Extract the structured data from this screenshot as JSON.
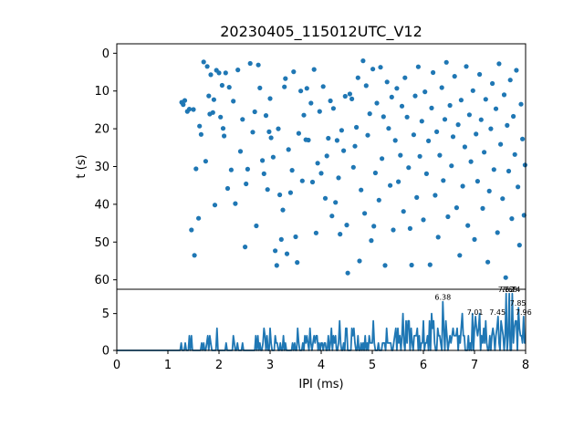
{
  "chart_data": [
    {
      "type": "scatter",
      "title": "20230405_115012UTC_V12",
      "xlabel": "",
      "ylabel": "t (s)",
      "xlim": [
        0,
        8
      ],
      "ylim": [
        62.5,
        -2.5
      ],
      "y_inverted": true,
      "color": "#1f77b4",
      "xticks": [],
      "yticks": [
        0,
        10,
        20,
        30,
        40,
        50,
        60
      ],
      "ytick_labels": [
        "0",
        "10",
        "20",
        "30",
        "40",
        "50",
        "60"
      ],
      "points": [
        [
          1.27,
          13.0
        ],
        [
          1.3,
          13.6
        ],
        [
          1.33,
          12.5
        ],
        [
          1.38,
          15.4
        ],
        [
          1.42,
          14.8
        ],
        [
          1.46,
          46.8
        ],
        [
          1.5,
          14.9
        ],
        [
          1.52,
          53.5
        ],
        [
          1.55,
          30.6
        ],
        [
          1.6,
          43.7
        ],
        [
          1.62,
          19.3
        ],
        [
          1.65,
          21.5
        ],
        [
          1.7,
          2.3
        ],
        [
          1.74,
          28.6
        ],
        [
          1.77,
          3.5
        ],
        [
          1.8,
          11.3
        ],
        [
          1.82,
          16.1
        ],
        [
          1.84,
          5.7
        ],
        [
          1.88,
          15.7
        ],
        [
          1.9,
          12.3
        ],
        [
          1.92,
          40.2
        ],
        [
          1.95,
          4.5
        ],
        [
          2.0,
          5.2
        ],
        [
          2.03,
          16.9
        ],
        [
          2.06,
          8.5
        ],
        [
          2.08,
          19.9
        ],
        [
          2.1,
          21.9
        ],
        [
          2.13,
          5.2
        ],
        [
          2.17,
          35.8
        ],
        [
          2.2,
          9.0
        ],
        [
          2.24,
          30.9
        ],
        [
          2.28,
          12.7
        ],
        [
          2.32,
          39.8
        ],
        [
          2.37,
          4.4
        ],
        [
          2.42,
          26.0
        ],
        [
          2.46,
          17.5
        ],
        [
          2.51,
          51.3
        ],
        [
          2.53,
          34.6
        ],
        [
          2.56,
          30.7
        ],
        [
          2.61,
          2.7
        ],
        [
          2.66,
          20.9
        ],
        [
          2.7,
          15.5
        ],
        [
          2.73,
          45.7
        ],
        [
          2.77,
          3.1
        ],
        [
          2.8,
          9.2
        ],
        [
          2.85,
          28.4
        ],
        [
          2.88,
          31.9
        ],
        [
          2.92,
          16.5
        ],
        [
          2.95,
          36.1
        ],
        [
          2.98,
          20.8
        ],
        [
          3.0,
          12.0
        ],
        [
          3.02,
          22.4
        ],
        [
          3.06,
          27.5
        ],
        [
          3.1,
          52.3
        ],
        [
          3.13,
          56.2
        ],
        [
          3.16,
          20.0
        ],
        [
          3.19,
          37.5
        ],
        [
          3.22,
          49.3
        ],
        [
          3.25,
          41.5
        ],
        [
          3.28,
          8.9
        ],
        [
          3.3,
          6.7
        ],
        [
          3.33,
          53.1
        ],
        [
          3.36,
          25.5
        ],
        [
          3.4,
          36.9
        ],
        [
          3.43,
          31.0
        ],
        [
          3.46,
          4.9
        ],
        [
          3.5,
          48.6
        ],
        [
          3.53,
          55.4
        ],
        [
          3.56,
          21.2
        ],
        [
          3.6,
          10.0
        ],
        [
          3.63,
          33.8
        ],
        [
          3.66,
          16.4
        ],
        [
          3.7,
          22.9
        ],
        [
          3.72,
          9.3
        ],
        [
          3.75,
          23.0
        ],
        [
          3.8,
          13.2
        ],
        [
          3.83,
          34.1
        ],
        [
          3.86,
          4.3
        ],
        [
          3.9,
          47.6
        ],
        [
          3.93,
          29.1
        ],
        [
          3.97,
          15.4
        ],
        [
          4.0,
          31.8
        ],
        [
          4.04,
          8.8
        ],
        [
          4.08,
          38.4
        ],
        [
          4.11,
          27.2
        ],
        [
          4.14,
          22.5
        ],
        [
          4.18,
          12.6
        ],
        [
          4.21,
          43.1
        ],
        [
          4.24,
          14.6
        ],
        [
          4.28,
          39.5
        ],
        [
          4.31,
          23.1
        ],
        [
          4.34,
          33.0
        ],
        [
          4.37,
          47.9
        ],
        [
          4.4,
          20.4
        ],
        [
          4.44,
          25.8
        ],
        [
          4.47,
          11.4
        ],
        [
          4.5,
          45.5
        ],
        [
          4.52,
          58.2
        ],
        [
          4.56,
          10.8
        ],
        [
          4.6,
          12.1
        ],
        [
          4.63,
          30.2
        ],
        [
          4.66,
          24.6
        ],
        [
          4.69,
          19.6
        ],
        [
          4.72,
          6.5
        ],
        [
          4.75,
          55.0
        ],
        [
          4.78,
          36.2
        ],
        [
          4.82,
          2.0
        ],
        [
          4.85,
          42.4
        ],
        [
          4.88,
          8.6
        ],
        [
          4.91,
          21.7
        ],
        [
          4.95,
          16.0
        ],
        [
          4.98,
          49.6
        ],
        [
          5.01,
          4.2
        ],
        [
          5.03,
          45.8
        ],
        [
          5.06,
          31.7
        ],
        [
          5.09,
          13.2
        ],
        [
          5.13,
          38.9
        ],
        [
          5.16,
          3.7
        ],
        [
          5.19,
          27.9
        ],
        [
          5.22,
          16.8
        ],
        [
          5.25,
          56.2
        ],
        [
          5.29,
          7.6
        ],
        [
          5.32,
          19.9
        ],
        [
          5.35,
          35.0
        ],
        [
          5.38,
          11.6
        ],
        [
          5.41,
          46.8
        ],
        [
          5.45,
          23.1
        ],
        [
          5.48,
          9.3
        ],
        [
          5.51,
          34.0
        ],
        [
          5.55,
          27.0
        ],
        [
          5.58,
          14.0
        ],
        [
          5.61,
          41.9
        ],
        [
          5.64,
          6.5
        ],
        [
          5.68,
          16.9
        ],
        [
          5.71,
          30.3
        ],
        [
          5.74,
          46.4
        ],
        [
          5.77,
          56.1
        ],
        [
          5.81,
          21.6
        ],
        [
          5.84,
          11.3
        ],
        [
          5.87,
          38.2
        ],
        [
          5.9,
          3.6
        ],
        [
          5.93,
          27.3
        ],
        [
          5.97,
          18.0
        ],
        [
          6.0,
          44.1
        ],
        [
          6.03,
          10.2
        ],
        [
          6.06,
          31.9
        ],
        [
          6.1,
          23.2
        ],
        [
          6.13,
          56.0
        ],
        [
          6.16,
          14.5
        ],
        [
          6.19,
          5.1
        ],
        [
          6.23,
          37.6
        ],
        [
          6.26,
          20.8
        ],
        [
          6.29,
          48.7
        ],
        [
          6.32,
          27.0
        ],
        [
          6.36,
          9.1
        ],
        [
          6.39,
          33.7
        ],
        [
          6.42,
          17.5
        ],
        [
          6.45,
          2.4
        ],
        [
          6.48,
          43.3
        ],
        [
          6.52,
          13.8
        ],
        [
          6.55,
          29.8
        ],
        [
          6.58,
          22.1
        ],
        [
          6.61,
          6.1
        ],
        [
          6.65,
          40.9
        ],
        [
          6.68,
          18.9
        ],
        [
          6.71,
          53.5
        ],
        [
          6.74,
          12.4
        ],
        [
          6.77,
          35.2
        ],
        [
          6.81,
          24.8
        ],
        [
          6.84,
          3.5
        ],
        [
          6.87,
          45.6
        ],
        [
          6.9,
          16.3
        ],
        [
          6.93,
          28.7
        ],
        [
          6.97,
          9.9
        ],
        [
          7.0,
          49.3
        ],
        [
          7.03,
          21.4
        ],
        [
          7.06,
          33.9
        ],
        [
          7.1,
          5.6
        ],
        [
          7.13,
          17.6
        ],
        [
          7.16,
          41.1
        ],
        [
          7.19,
          26.2
        ],
        [
          7.22,
          12.2
        ],
        [
          7.26,
          55.3
        ],
        [
          7.29,
          36.5
        ],
        [
          7.32,
          20.0
        ],
        [
          7.35,
          8.0
        ],
        [
          7.38,
          30.8
        ],
        [
          7.42,
          14.7
        ],
        [
          7.45,
          47.5
        ],
        [
          7.48,
          2.8
        ],
        [
          7.51,
          24.1
        ],
        [
          7.55,
          38.5
        ],
        [
          7.58,
          11.0
        ],
        [
          7.61,
          59.4
        ],
        [
          7.64,
          19.1
        ],
        [
          7.67,
          31.2
        ],
        [
          7.7,
          7.1
        ],
        [
          7.73,
          43.8
        ],
        [
          7.76,
          16.7
        ],
        [
          7.79,
          26.8
        ],
        [
          7.82,
          4.5
        ],
        [
          7.85,
          35.4
        ],
        [
          7.88,
          50.8
        ],
        [
          7.91,
          13.5
        ],
        [
          7.94,
          22.7
        ],
        [
          7.97,
          42.9
        ],
        [
          7.99,
          29.6
        ]
      ]
    },
    {
      "type": "line",
      "title": "",
      "xlabel": "IPI (ms)",
      "ylabel": "",
      "xlim": [
        0,
        8
      ],
      "ylim": [
        0,
        8.3
      ],
      "color": "#1f77b4",
      "xticks": [
        0,
        1,
        2,
        3,
        4,
        5,
        6,
        7,
        8
      ],
      "xtick_labels": [
        "0",
        "1",
        "2",
        "3",
        "4",
        "5",
        "6",
        "7",
        "8"
      ],
      "yticks": [
        0,
        5
      ],
      "ytick_labels": [
        "0",
        "5"
      ],
      "bin_width": 0.02,
      "noise_seed": 12345,
      "peaks": [
        {
          "x": 6.38,
          "y": 6.6,
          "label": "6.38"
        },
        {
          "x": 7.01,
          "y": 4.6,
          "label": "7.01"
        },
        {
          "x": 7.45,
          "y": 4.6,
          "label": "7.45"
        },
        {
          "x": 7.62,
          "y": 7.7,
          "label": "7.62"
        },
        {
          "x": 7.68,
          "y": 7.7,
          "label": "7.68"
        },
        {
          "x": 7.74,
          "y": 7.7,
          "label": "7.74"
        },
        {
          "x": 7.85,
          "y": 5.8,
          "label": "7.85"
        },
        {
          "x": 7.96,
          "y": 4.6,
          "label": "7.96"
        }
      ]
    }
  ]
}
